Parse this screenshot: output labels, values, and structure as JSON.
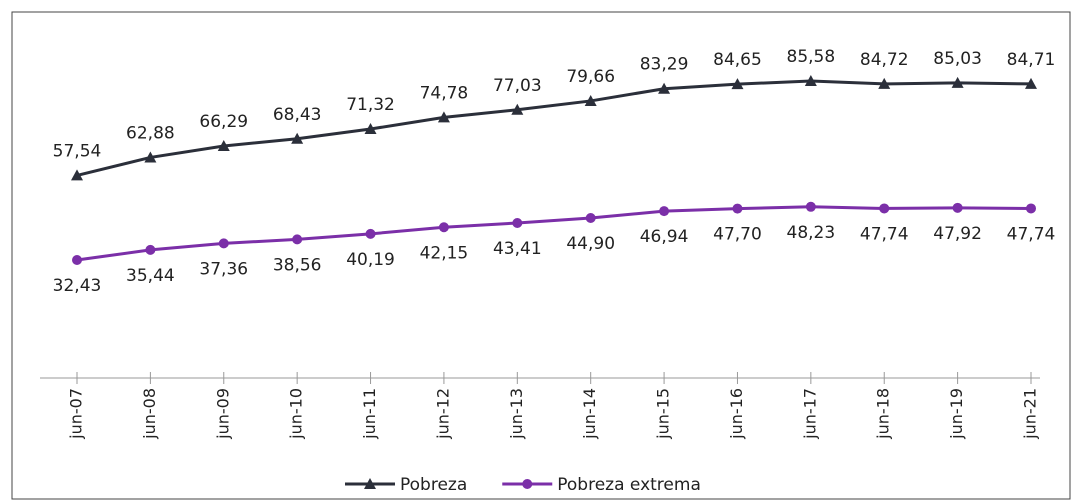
{
  "chart_data": {
    "type": "line",
    "categories": [
      "jun-07",
      "jun-08",
      "jun-09",
      "jun-10",
      "jun-11",
      "jun-12",
      "jun-13",
      "jun-14",
      "jun-15",
      "jun-16",
      "jun-17",
      "jun-18",
      "jun-19",
      "jun-21"
    ],
    "series": [
      {
        "name": "Pobreza",
        "color": "#2b2f3a",
        "marker": "triangle",
        "values": [
          57.54,
          62.88,
          66.29,
          68.43,
          71.32,
          74.78,
          77.03,
          79.66,
          83.29,
          84.65,
          85.58,
          84.72,
          85.03,
          84.71
        ],
        "value_labels": [
          "57,54",
          "62,88",
          "66,29",
          "68,43",
          "71,32",
          "74,78",
          "77,03",
          "79,66",
          "83,29",
          "84,65",
          "85,58",
          "84,72",
          "85,03",
          "84,71"
        ]
      },
      {
        "name": "Pobreza extrema",
        "color": "#7b2fa8",
        "marker": "circle",
        "values": [
          32.43,
          35.44,
          37.36,
          38.56,
          40.19,
          42.15,
          43.41,
          44.9,
          46.94,
          47.7,
          48.23,
          47.74,
          47.92,
          47.74
        ],
        "value_labels": [
          "32,43",
          "35,44",
          "37,36",
          "38,56",
          "40,19",
          "42,15",
          "43,41",
          "44,90",
          "46,94",
          "47,70",
          "48,23",
          "47,74",
          "47,92",
          "47,74"
        ]
      }
    ],
    "legend": "bottom"
  }
}
